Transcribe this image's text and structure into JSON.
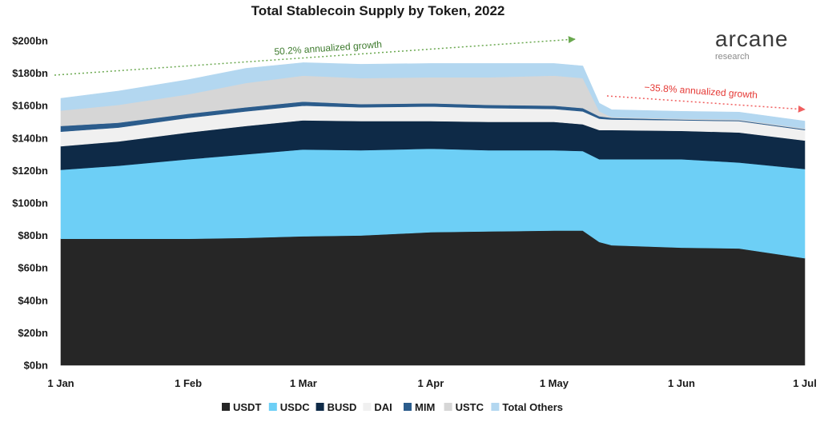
{
  "chart_data": {
    "type": "area",
    "title": "Total Stablecoin Supply by Token, 2022",
    "x_ticks": [
      "1 Jan",
      "1 Feb",
      "1 Mar",
      "1 Apr",
      "1 May",
      "1 Jun",
      "1 Jul"
    ],
    "y_ticks": [
      "$0bn",
      "$20bn",
      "$40bn",
      "$60bn",
      "$80bn",
      "$100bn",
      "$120bn",
      "$140bn",
      "$160bn",
      "$180bn",
      "$200bn"
    ],
    "ylim": [
      0,
      200
    ],
    "stacked": true,
    "grid": false,
    "legend_position": "bottom",
    "x": [
      "2022-01-01",
      "2022-01-15",
      "2022-02-01",
      "2022-02-15",
      "2022-03-01",
      "2022-03-15",
      "2022-04-01",
      "2022-04-15",
      "2022-05-01",
      "2022-05-08",
      "2022-05-12",
      "2022-05-15",
      "2022-06-01",
      "2022-06-15",
      "2022-07-01"
    ],
    "series": [
      {
        "name": "USDT",
        "color": "#262626",
        "values": [
          78,
          78,
          78,
          78.5,
          79.5,
          80,
          82,
          82.5,
          83,
          83,
          76,
          74,
          72.5,
          72,
          66
        ]
      },
      {
        "name": "USDC",
        "color": "#6dcff6",
        "values": [
          42.5,
          45,
          49,
          51.5,
          53.5,
          52.5,
          51.5,
          50,
          49.5,
          49,
          51,
          53,
          54.5,
          53,
          55
        ]
      },
      {
        "name": "BUSD",
        "color": "#0e2a47",
        "values": [
          14.5,
          15,
          16.5,
          17.5,
          18,
          18,
          17,
          17.5,
          17.5,
          16.5,
          18,
          18,
          17.5,
          18.5,
          17.5
        ]
      },
      {
        "name": "DAI",
        "color": "#f0f0f0",
        "values": [
          9,
          8.5,
          9,
          9,
          9,
          8.5,
          9,
          8.5,
          8,
          8,
          7,
          6.5,
          6.5,
          7,
          6.5
        ]
      },
      {
        "name": "MIM",
        "color": "#2b5c8c",
        "values": [
          3.5,
          3,
          2.5,
          2.5,
          2.5,
          2,
          2,
          2,
          2,
          2,
          1.5,
          1,
          0.5,
          0.5,
          0.5
        ]
      },
      {
        "name": "USTC",
        "color": "#d6d6d6",
        "values": [
          9.5,
          11,
          12,
          15,
          16,
          16,
          16,
          17,
          18.5,
          18.5,
          3,
          0.5,
          0.5,
          0.5,
          0.5
        ]
      },
      {
        "name": "Total Others",
        "color": "#b3d7f0",
        "values": [
          7.5,
          8.5,
          9,
          9,
          8,
          8.5,
          8.5,
          8.5,
          7.5,
          7.5,
          5,
          4.5,
          4.5,
          4.5,
          4.5
        ]
      }
    ],
    "annotations": [
      {
        "text": "50.2% annualized growth",
        "color": "#3e7b2e"
      },
      {
        "text": "−35.8% annualized growth",
        "color": "#e53935"
      }
    ]
  },
  "brand": {
    "name": "arcane",
    "sub": "research"
  }
}
